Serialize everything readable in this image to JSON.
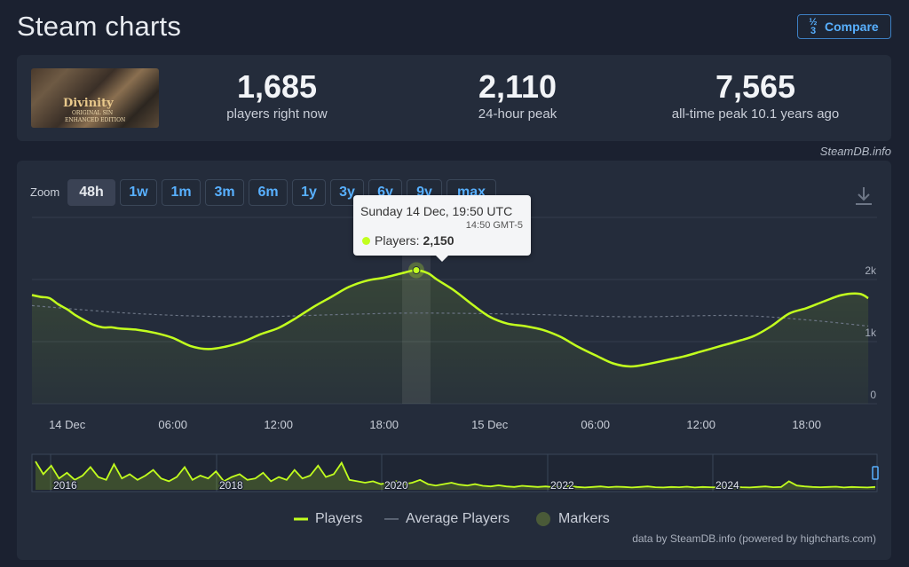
{
  "header": {
    "title": "Steam charts",
    "compare_label": "Compare",
    "compare_icon": "numbers-icon"
  },
  "stats": {
    "image_title": "Divinity",
    "image_sub1": "ORIGINAL SIN",
    "image_sub2": "ENHANCED EDITION",
    "now_value": "1,685",
    "now_label": "players right now",
    "peak24_value": "2,110",
    "peak24_label": "24-hour peak",
    "alltime_value": "7,565",
    "alltime_label": "all-time peak 10.1 years ago"
  },
  "credit_top": "SteamDB.info",
  "zoom": {
    "label": "Zoom",
    "buttons": [
      "48h",
      "1w",
      "1m",
      "3m",
      "6m",
      "1y",
      "3y",
      "6y",
      "9y",
      "max"
    ],
    "active": "48h"
  },
  "tooltip": {
    "title": "Sunday 14 Dec, 19:50 UTC",
    "local_time": "14:50 GMT-5",
    "series_label": "Players: ",
    "value": "2,150"
  },
  "legend": {
    "players": "Players",
    "average": "Average Players",
    "markers": "Markers"
  },
  "credit_bottom": "data by SteamDB.info (powered by highcharts.com)",
  "colors": {
    "accent": "#c2ff1e",
    "link": "#58b0ff",
    "background": "#1b2130",
    "card": "#242c3b"
  },
  "chart_data": {
    "type": "line",
    "x_labels": [
      "14 Dec",
      "06:00",
      "12:00",
      "18:00",
      "15 Dec",
      "06:00",
      "12:00",
      "18:00"
    ],
    "y_ticks": [
      {
        "value": 0,
        "label": "0"
      },
      {
        "value": 1000,
        "label": "1k"
      },
      {
        "value": 2000,
        "label": "2k"
      }
    ],
    "ylim": [
      0,
      3000
    ],
    "hours_range": [
      -2,
      46
    ],
    "grid": true,
    "legend_position": "bottom-center",
    "highlight_hour": 19.83,
    "series": [
      {
        "name": "Players",
        "color": "#c2ff1e",
        "points": [
          [
            -2,
            1750
          ],
          [
            -1.5,
            1720
          ],
          [
            -1,
            1700
          ],
          [
            -0.5,
            1600
          ],
          [
            0,
            1520
          ],
          [
            0.5,
            1420
          ],
          [
            1,
            1340
          ],
          [
            1.5,
            1270
          ],
          [
            2,
            1230
          ],
          [
            2.5,
            1230
          ],
          [
            3,
            1210
          ],
          [
            4,
            1190
          ],
          [
            5,
            1140
          ],
          [
            6,
            1060
          ],
          [
            7,
            930
          ],
          [
            8,
            880
          ],
          [
            9,
            920
          ],
          [
            10,
            1000
          ],
          [
            11,
            1120
          ],
          [
            12,
            1220
          ],
          [
            13,
            1380
          ],
          [
            14,
            1560
          ],
          [
            15,
            1720
          ],
          [
            16,
            1880
          ],
          [
            17,
            1980
          ],
          [
            18,
            2030
          ],
          [
            19,
            2100
          ],
          [
            19.83,
            2150
          ],
          [
            20.5,
            2100
          ],
          [
            21,
            2000
          ],
          [
            22,
            1820
          ],
          [
            23,
            1600
          ],
          [
            24,
            1400
          ],
          [
            25,
            1290
          ],
          [
            26,
            1250
          ],
          [
            27,
            1190
          ],
          [
            28,
            1080
          ],
          [
            29,
            920
          ],
          [
            30,
            780
          ],
          [
            31,
            650
          ],
          [
            32,
            600
          ],
          [
            33,
            640
          ],
          [
            34,
            700
          ],
          [
            35,
            760
          ],
          [
            36,
            840
          ],
          [
            37,
            920
          ],
          [
            38,
            1000
          ],
          [
            39,
            1090
          ],
          [
            40,
            1250
          ],
          [
            41,
            1450
          ],
          [
            42,
            1540
          ],
          [
            43,
            1650
          ],
          [
            44,
            1750
          ],
          [
            45,
            1770
          ],
          [
            45.5,
            1700
          ]
        ]
      },
      {
        "name": "Average Players",
        "color": "#6b7484",
        "points": [
          [
            -2,
            1580
          ],
          [
            4,
            1450
          ],
          [
            10,
            1400
          ],
          [
            16,
            1440
          ],
          [
            20,
            1460
          ],
          [
            26,
            1440
          ],
          [
            32,
            1400
          ],
          [
            38,
            1420
          ],
          [
            42,
            1350
          ],
          [
            45.5,
            1250
          ]
        ]
      }
    ],
    "navigator": {
      "x_labels": [
        "2016",
        "2018",
        "2020",
        "2022",
        "2024"
      ],
      "values": [
        1.0,
        0.55,
        0.85,
        0.4,
        0.6,
        0.35,
        0.5,
        0.8,
        0.45,
        0.35,
        0.9,
        0.4,
        0.55,
        0.35,
        0.5,
        0.7,
        0.4,
        0.3,
        0.45,
        0.8,
        0.35,
        0.5,
        0.4,
        0.65,
        0.3,
        0.45,
        0.55,
        0.35,
        0.4,
        0.6,
        0.3,
        0.45,
        0.35,
        0.7,
        0.4,
        0.5,
        0.85,
        0.45,
        0.55,
        0.95,
        0.35,
        0.3,
        0.25,
        0.3,
        0.2,
        0.25,
        0.3,
        0.2,
        0.25,
        0.35,
        0.2,
        0.15,
        0.2,
        0.25,
        0.18,
        0.15,
        0.2,
        0.14,
        0.12,
        0.16,
        0.12,
        0.1,
        0.14,
        0.12,
        0.1,
        0.12,
        0.09,
        0.1,
        0.13,
        0.1,
        0.08,
        0.1,
        0.12,
        0.09,
        0.11,
        0.1,
        0.08,
        0.1,
        0.12,
        0.09,
        0.08,
        0.1,
        0.09,
        0.11,
        0.08,
        0.1,
        0.09,
        0.08,
        0.1,
        0.11,
        0.09,
        0.08,
        0.1,
        0.12,
        0.09,
        0.1,
        0.3,
        0.15,
        0.12,
        0.1,
        0.09,
        0.1,
        0.11,
        0.08,
        0.1,
        0.09,
        0.08,
        0.1
      ]
    }
  }
}
